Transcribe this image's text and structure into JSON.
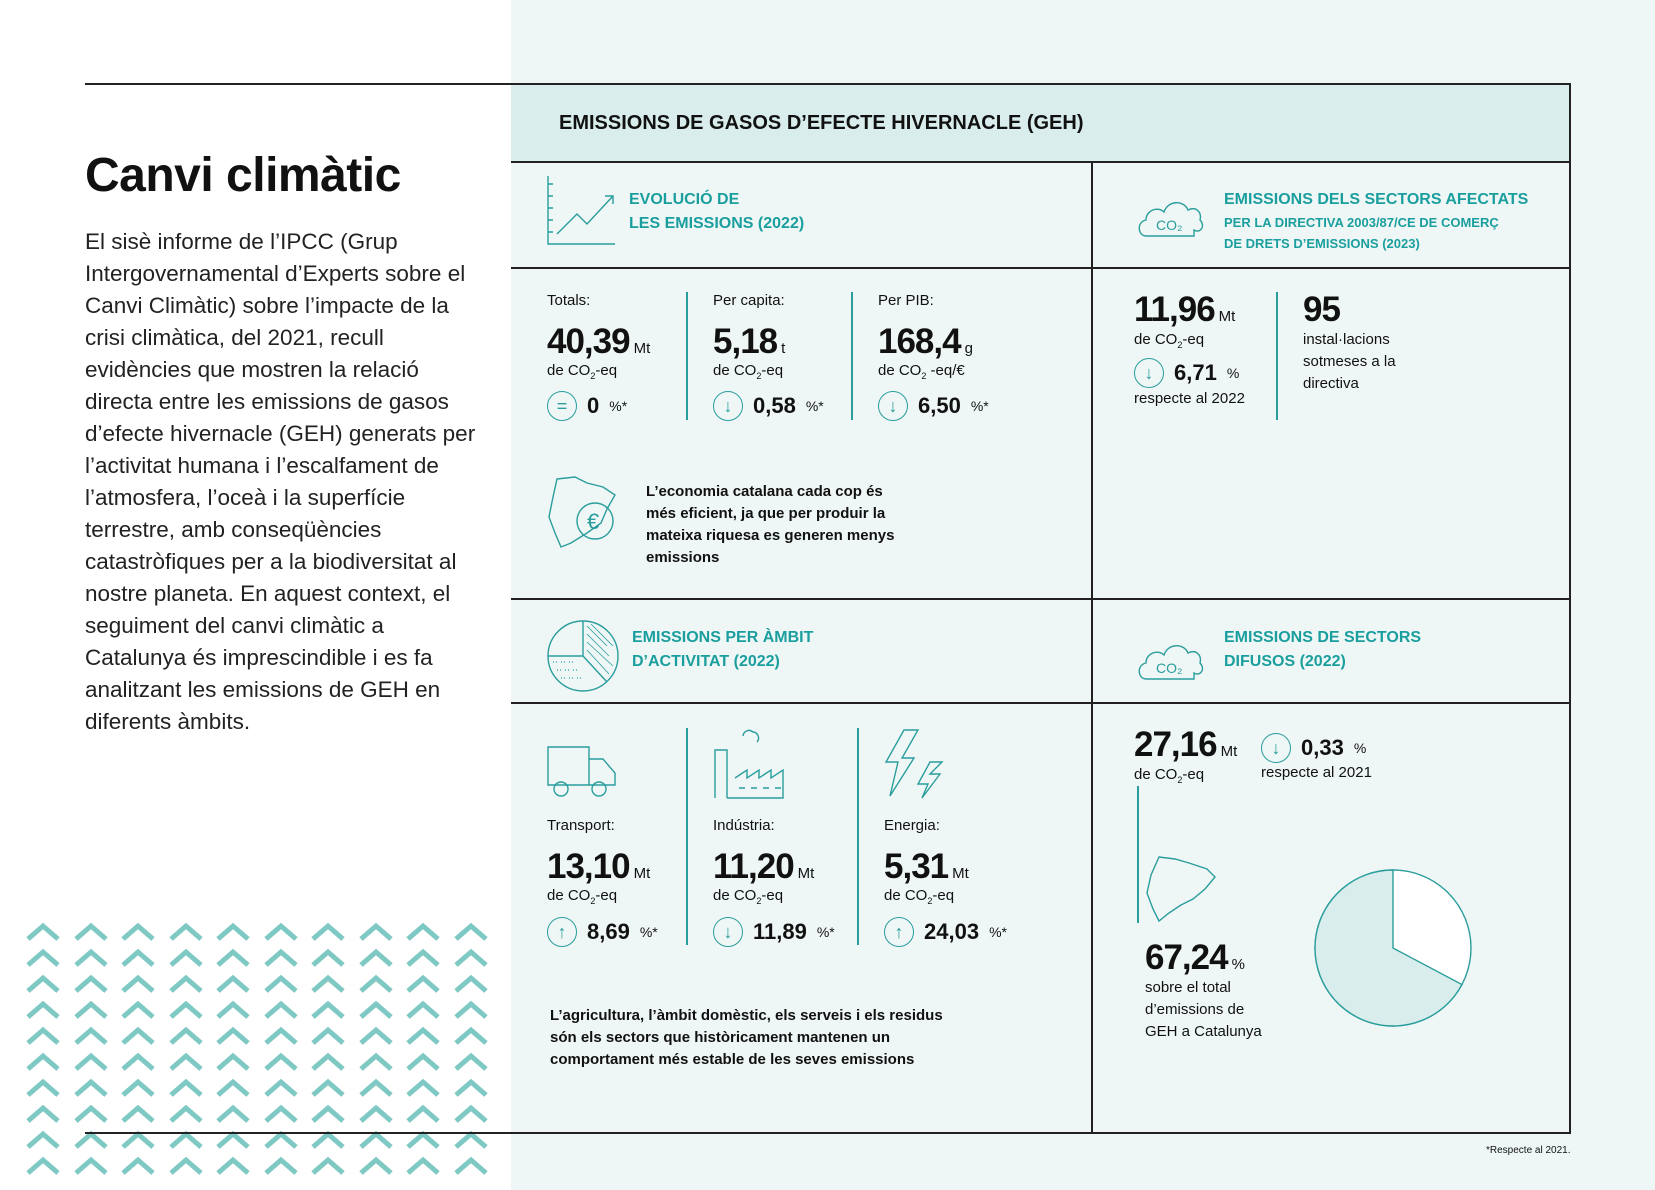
{
  "left": {
    "title": "Canvi climàtic",
    "body": "El sisè informe de l’IPCC (Grup Intergovernamental d’Experts sobre el Canvi Climàtic) sobre l’impacte de la crisi climàtica, del 2021, recull evidències que mostren la relació directa entre les emissions de gasos d’efecte hivernacle (GEH) generats per l’activitat humana i l’escalfament de l’atmosfera, l’oceà i la superfície terrestre, amb conseqüències catastròfiques per a la biodiversitat al nostre planeta. En aquest context, el seguiment del canvi climàtic a Catalunya és imprescindible i es fa analitzant les emissions de GEH en diferents àmbits."
  },
  "header": "EMISSIONS DE GASOS D’EFECTE HIVERNACLE (GEH)",
  "evolucio": {
    "title1": "EVOLUCIÓ DE",
    "title2": "LES EMISSIONS (2022)",
    "stats": [
      {
        "label": "Totals:",
        "value": "40,39",
        "unit": "Mt",
        "sub": "de CO",
        "sub2": "2",
        "sub3": "-eq",
        "change": "0",
        "pct": "%*",
        "icon": "equal-icon"
      },
      {
        "label": "Per capita:",
        "value": "5,18",
        "unit": "t",
        "sub": "de CO",
        "sub2": "2",
        "sub3": "-eq",
        "change": "0,58",
        "pct": "%*",
        "icon": "arrow-down-icon"
      },
      {
        "label": "Per PIB:",
        "value": "168,4",
        "unit": "g",
        "sub": "de CO",
        "sub2": "2",
        "sub3": " -eq/€",
        "change": "6,50",
        "pct": "%*",
        "icon": "arrow-down-icon"
      }
    ],
    "note": "L’economia catalana cada cop és més eficient, ja que per produir la mateixa riquesa es generen menys emissions"
  },
  "afectats": {
    "title1": "EMISSIONS DELS SECTORS AFECTATS",
    "title2": "PER LA DIRECTIVA 2003/87/CE DE COMERÇ",
    "title3": "DE DRETS D’EMISSIONS (2023)",
    "value": "11,96",
    "unit": "Mt",
    "sub": "de CO",
    "sub2": "2",
    "sub3": "-eq",
    "change": "6,71",
    "pct": "%",
    "respect": "respecte al 2022",
    "count": "95",
    "count_text": "instal·lacions sotmeses a la directiva",
    "co2": "CO₂"
  },
  "ambit": {
    "title1": "EMISSIONS PER ÀMBIT",
    "title2": "D’ACTIVITAT (2022)",
    "stats": [
      {
        "label": "Transport:",
        "value": "13,10",
        "unit": "Mt",
        "sub": "de CO",
        "sub2": "2",
        "sub3": "-eq",
        "change": "8,69",
        "pct": "%*",
        "icon": "arrow-up-icon"
      },
      {
        "label": "Indústria:",
        "value": "11,20",
        "unit": "Mt",
        "sub": "de CO",
        "sub2": "2",
        "sub3": "-eq",
        "change": "11,89",
        "pct": "%*",
        "icon": "arrow-down-icon"
      },
      {
        "label": "Energia:",
        "value": "5,31",
        "unit": "Mt",
        "sub": "de CO",
        "sub2": "2",
        "sub3": "-eq",
        "change": "24,03",
        "pct": "%*",
        "icon": "arrow-up-icon"
      }
    ],
    "note": "L’agricultura, l’àmbit domèstic, els serveis i els residus són els sectors que històricament mantenen un comportament més estable de les seves emissions"
  },
  "difusos": {
    "title1": "EMISSIONS DE SECTORS",
    "title2": "DIFUSOS (2022)",
    "value": "27,16",
    "unit": "Mt",
    "sub": "de CO",
    "sub2": "2",
    "sub3": "-eq",
    "change": "0,33",
    "pct": "%",
    "respect": "respecte al 2021",
    "share": "67,24",
    "share_pct": "%",
    "share_text": "sobre el total d’emissions de GEH a Catalunya",
    "share_value": 67.24,
    "co2": "CO₂"
  },
  "footnote": "*Respecte al 2021.",
  "colors": {
    "accent": "#1a9e9e",
    "chevron": "#7fc9c4",
    "panel": "#eff7f6",
    "band": "#d9eeec"
  }
}
